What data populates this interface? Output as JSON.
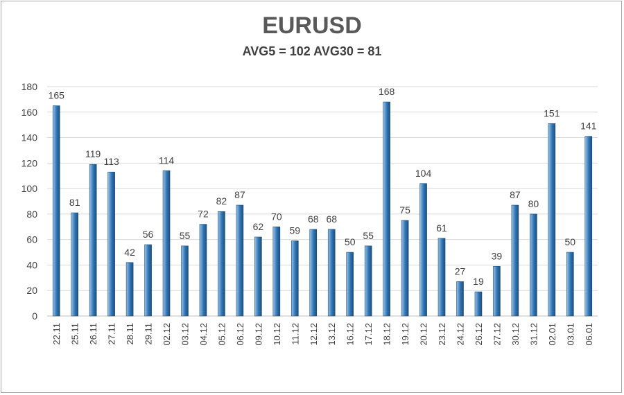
{
  "chart_data": {
    "type": "bar",
    "title": "EURUSD",
    "subtitle": "AVG5 = 102 AVG30 = 81",
    "categories": [
      "22.11",
      "25.11",
      "26.11",
      "27.11",
      "28.11",
      "29.11",
      "02.12",
      "03.12",
      "04.12",
      "05.12",
      "06.12",
      "09.12",
      "10.12",
      "11.12",
      "12.12",
      "13.12",
      "16.12",
      "17.12",
      "18.12",
      "19.12",
      "20.12",
      "23.12",
      "24.12",
      "26.12",
      "27.12",
      "30.12",
      "31.12",
      "02.01",
      "03.01",
      "06.01"
    ],
    "values": [
      165,
      81,
      119,
      113,
      42,
      56,
      114,
      55,
      72,
      82,
      87,
      62,
      70,
      59,
      68,
      68,
      50,
      55,
      168,
      75,
      104,
      61,
      27,
      19,
      39,
      87,
      80,
      151,
      50,
      141
    ],
    "ylim": [
      0,
      180
    ],
    "yticks": [
      0,
      20,
      40,
      60,
      80,
      100,
      120,
      140,
      160,
      180
    ],
    "grid": true,
    "legend": "none",
    "colors": {
      "bar_light": "#9dc3e6",
      "bar_dark": "#2e75b6",
      "bar_edge": "#1f4e79",
      "grid": "#d9d9d9",
      "axis": "#bfbfbf"
    }
  }
}
